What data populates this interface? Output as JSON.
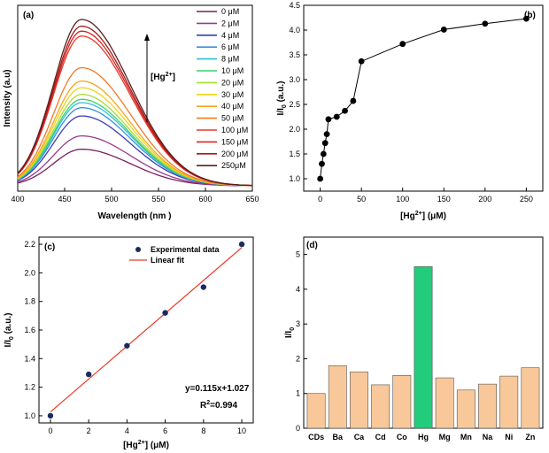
{
  "colors": {
    "axis": "#000000",
    "fit_line": "#e8392a",
    "marker": "#000000",
    "scatter_marker": "#1b2a5e",
    "bar_default": "#f8c89a",
    "bar_highlight": "#22cc7a",
    "bar_edge": "#555555"
  },
  "chart_data": [
    {
      "panel": "(a)",
      "type": "line",
      "xlabel": "Wavelength (nm )",
      "ylabel": "Intensity (a.u)",
      "xlim": [
        400,
        650
      ],
      "xticks": [
        "400",
        "450",
        "500",
        "550",
        "600",
        "650"
      ],
      "ylim": [
        0,
        1
      ],
      "peak_wavelength": 468,
      "annotation": "[Hg",
      "annotation_sup": "2+",
      "annotation_close": "]",
      "series": [
        {
          "name": "0 μM",
          "color": "#7a1f5c",
          "peak": 0.22
        },
        {
          "name": "2 μM",
          "color": "#9b3a8c",
          "peak": 0.3
        },
        {
          "name": "4 μM",
          "color": "#3b3fb3",
          "peak": 0.42
        },
        {
          "name": "6 μM",
          "color": "#3a8de0",
          "peak": 0.47
        },
        {
          "name": "8 μM",
          "color": "#28c4d8",
          "peak": 0.5
        },
        {
          "name": "10 μM",
          "color": "#3dcf6a",
          "peak": 0.52
        },
        {
          "name": "20 μM",
          "color": "#a8dc32",
          "peak": 0.55
        },
        {
          "name": "30 μM",
          "color": "#f2d21a",
          "peak": 0.59
        },
        {
          "name": "40 μM",
          "color": "#f5a61c",
          "peak": 0.63
        },
        {
          "name": "50 μM",
          "color": "#f07a25",
          "peak": 0.71
        },
        {
          "name": "100 μM",
          "color": "#e8392a",
          "peak": 0.9
        },
        {
          "name": "150 μM",
          "color": "#d92323",
          "peak": 0.93
        },
        {
          "name": "200 μM",
          "color": "#a81919",
          "peak": 0.96
        },
        {
          "name": "250μM",
          "color": "#5a1f1f",
          "peak": 1.0
        }
      ]
    },
    {
      "panel": "(b)",
      "type": "line",
      "xlabel": "[Hg",
      "xlabel_sup": "2+",
      "xlabel_tail": "] (μM)",
      "ylabel": "I/I",
      "ylabel_sub": "0",
      "ylabel_tail": " (a.u.)",
      "xlim": [
        -20,
        270
      ],
      "xticks": [
        0,
        50,
        100,
        150,
        200,
        250
      ],
      "ylim": [
        0.75,
        4.5
      ],
      "yticks": [
        "1.0",
        "1.5",
        "2.0",
        "2.5",
        "3.0",
        "3.5",
        "4.0",
        "4.5"
      ],
      "x": [
        0,
        2,
        4,
        6,
        8,
        10,
        20,
        30,
        40,
        50,
        100,
        150,
        200,
        250
      ],
      "y": [
        1.0,
        1.3,
        1.5,
        1.72,
        1.9,
        2.2,
        2.25,
        2.37,
        2.57,
        3.37,
        3.72,
        4.01,
        4.13,
        4.23
      ]
    },
    {
      "panel": "(c)",
      "type": "scatter",
      "xlabel": "[Hg",
      "xlabel_sup": "2+",
      "xlabel_tail": "] (μM)",
      "ylabel": "I/I",
      "ylabel_sub": "0",
      "ylabel_tail": " (a.u.)",
      "xlim": [
        -0.6,
        10.6
      ],
      "xticks": [
        0,
        2,
        4,
        6,
        8,
        10
      ],
      "ylim": [
        0.95,
        2.25
      ],
      "yticks": [
        "1.0",
        "1.2",
        "1.4",
        "1.6",
        "1.8",
        "2.0",
        "2.2"
      ],
      "x": [
        0,
        2,
        4,
        6,
        8,
        10
      ],
      "y": [
        1.0,
        1.29,
        1.49,
        1.72,
        1.9,
        2.2
      ],
      "fit": {
        "slope": 0.115,
        "intercept": 1.027
      },
      "legend": [
        "Experimental data",
        "Linear fit"
      ],
      "equation": "y=0.115x+1.027",
      "r2_label": "R",
      "r2_sup": "2",
      "r2_value": "=0.994"
    },
    {
      "panel": "(d)",
      "type": "bar",
      "ylabel": "I/I",
      "ylabel_sub": "0",
      "categories": [
        "CDs",
        "Ba",
        "Ca",
        "Cd",
        "Co",
        "Hg",
        "Mg",
        "Mn",
        "Na",
        "Ni",
        "Zn"
      ],
      "values": [
        1.0,
        1.8,
        1.62,
        1.25,
        1.52,
        4.65,
        1.45,
        1.1,
        1.27,
        1.5,
        1.74
      ],
      "highlight": "Hg",
      "ylim": [
        0,
        5.5
      ],
      "yticks": [
        "0",
        "1",
        "2",
        "3",
        "4",
        "5"
      ]
    }
  ]
}
